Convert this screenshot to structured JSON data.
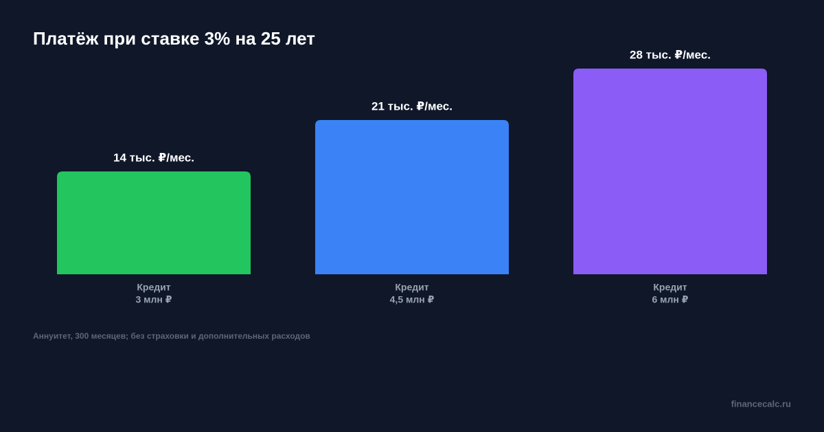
{
  "chart_data": {
    "type": "bar",
    "title": "Платёж при ставке 3% на 25 лет",
    "categories": [
      [
        "Кредит",
        "3 млн ₽"
      ],
      [
        "Кредит",
        "4,5 млн ₽"
      ],
      [
        "Кредит",
        "6 млн ₽"
      ]
    ],
    "values": [
      14,
      21,
      28
    ],
    "value_labels": [
      "14 тыс. ₽/мес.",
      "21 тыс. ₽/мес.",
      "28 тыс. ₽/мес."
    ],
    "colors": [
      "#22c55e",
      "#3b82f6",
      "#8b5cf6"
    ],
    "note": "Аннуитет, 300 месяцев; без страховки и дополнительных расходов",
    "source": "financecalc.ru"
  }
}
